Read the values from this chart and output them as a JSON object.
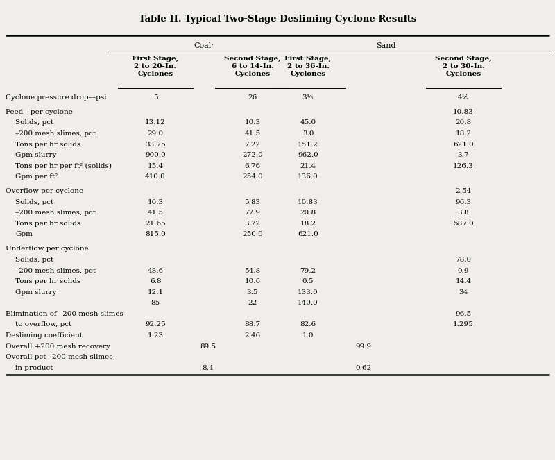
{
  "title": "Table II. Typical Two-Stage Desliming Cyclone Results",
  "bg_color": "#f0eeeb",
  "col_x": {
    "label": 0.01,
    "c1": 0.28,
    "c_coal_mid": 0.375,
    "c2": 0.455,
    "c3": 0.555,
    "c_sand_mid": 0.655,
    "c4": 0.835
  },
  "coal_label": "Coal·",
  "sand_label": "Sand",
  "col_headers": [
    [
      "First Stage,",
      "2 to 20-In.",
      "Cyclones"
    ],
    [
      "Second Stage,",
      "6 to 14-In.",
      "Cyclones"
    ],
    [
      "First Stage,",
      "2 to 36-In.",
      "Cyclones"
    ],
    [
      "Second Stage,",
      "2 to 30-In.",
      "Cyclones"
    ]
  ],
  "rows": [
    {
      "label": "Cyclone pressure drop––psi",
      "indent": false,
      "spacer_before": false,
      "v": [
        "5",
        "",
        "26",
        "3⅘",
        "",
        "4½"
      ]
    },
    {
      "label": "",
      "indent": false,
      "spacer_before": false,
      "spacer": true,
      "v": [
        "",
        "",
        "",
        "",
        "",
        ""
      ]
    },
    {
      "label": "Feed––per cyclone",
      "indent": false,
      "spacer_before": false,
      "v": [
        "",
        "",
        "",
        "",
        "",
        "10.83"
      ]
    },
    {
      "label": "Solids, pct",
      "indent": true,
      "spacer_before": false,
      "v": [
        "13.12",
        "",
        "10.3",
        "45.0",
        "",
        "20.8"
      ]
    },
    {
      "label": "–200 mesh slimes, pct",
      "indent": true,
      "spacer_before": false,
      "v": [
        "29.0",
        "",
        "41.5",
        "3.0",
        "",
        "18.2"
      ]
    },
    {
      "label": "Tons per hr solids",
      "indent": true,
      "spacer_before": false,
      "v": [
        "33.75",
        "",
        "7.22",
        "151.2",
        "",
        "621.0"
      ]
    },
    {
      "label": "Gpm slurry",
      "indent": true,
      "spacer_before": false,
      "v": [
        "900.0",
        "",
        "272.0",
        "962.0",
        "",
        "3.7"
      ]
    },
    {
      "label": "Tons per hr per ft² (solids)",
      "indent": true,
      "spacer_before": false,
      "v": [
        "15.4",
        "",
        "6.76",
        "21.4",
        "",
        "126.3"
      ]
    },
    {
      "label": "Gpm per ft²",
      "indent": true,
      "spacer_before": false,
      "v": [
        "410.0",
        "",
        "254.0",
        "136.0",
        "",
        ""
      ]
    },
    {
      "label": "",
      "indent": false,
      "spacer_before": false,
      "spacer": true,
      "v": [
        "",
        "",
        "",
        "",
        "",
        ""
      ]
    },
    {
      "label": "Overflow per cyclone",
      "indent": false,
      "spacer_before": false,
      "v": [
        "",
        "",
        "",
        "",
        "",
        "2.54"
      ]
    },
    {
      "label": "Solids, pct",
      "indent": true,
      "spacer_before": false,
      "v": [
        "10.3",
        "",
        "5.83",
        "10.83",
        "",
        "96.3"
      ]
    },
    {
      "label": "–200 mesh slimes, pct",
      "indent": true,
      "spacer_before": false,
      "v": [
        "41.5",
        "",
        "77.9",
        "20.8",
        "",
        "3.8"
      ]
    },
    {
      "label": "Tons per hr solids",
      "indent": true,
      "spacer_before": false,
      "v": [
        "21.65",
        "",
        "3.72",
        "18.2",
        "",
        "587.0"
      ]
    },
    {
      "label": "Gpm",
      "indent": true,
      "spacer_before": false,
      "v": [
        "815.0",
        "",
        "250.0",
        "621.0",
        "",
        ""
      ]
    },
    {
      "label": "",
      "indent": false,
      "spacer_before": false,
      "spacer": true,
      "v": [
        "",
        "",
        "",
        "",
        "",
        ""
      ]
    },
    {
      "label": "Underflow per cyclone",
      "indent": false,
      "spacer_before": false,
      "v": [
        "",
        "",
        "",
        "",
        "",
        ""
      ]
    },
    {
      "label": "Solids, pct",
      "indent": true,
      "spacer_before": false,
      "v": [
        "",
        "",
        "",
        "",
        "",
        "78.0"
      ]
    },
    {
      "label": "–200 mesh slimes, pct",
      "indent": true,
      "spacer_before": false,
      "v": [
        "48.6",
        "",
        "54.8",
        "79.2",
        "",
        "0.9"
      ]
    },
    {
      "label": "Tons per hr solids",
      "indent": true,
      "spacer_before": false,
      "v": [
        "6.8",
        "",
        "10.6",
        "0.5",
        "",
        "14.4"
      ]
    },
    {
      "label": "Gpm slurry",
      "indent": true,
      "spacer_before": false,
      "v": [
        "12.1",
        "",
        "3.5",
        "133.0",
        "",
        "34"
      ]
    },
    {
      "label": "",
      "indent": true,
      "spacer_before": false,
      "v": [
        "85",
        "",
        "22",
        "140.0",
        "",
        ""
      ]
    },
    {
      "label": "Elimination of –200 mesh slimes",
      "indent": false,
      "spacer_before": false,
      "v": [
        "",
        "",
        "",
        "",
        "",
        "96.5"
      ]
    },
    {
      "label": "to overflow, pct",
      "indent": true,
      "spacer_before": false,
      "v": [
        "92.25",
        "",
        "88.7",
        "82.6",
        "",
        "1.295"
      ]
    },
    {
      "label": "Desliming coefficient",
      "indent": false,
      "spacer_before": false,
      "v": [
        "1.23",
        "",
        "2.46",
        "1.0",
        "",
        ""
      ]
    },
    {
      "label": "Overall +200 mesh recovery",
      "indent": false,
      "spacer_before": false,
      "v": [
        "",
        "89.5",
        "",
        "",
        "99.9",
        ""
      ]
    },
    {
      "label": "Overall pct –200 mesh slimes",
      "indent": false,
      "spacer_before": false,
      "v": [
        "",
        "",
        "",
        "",
        "",
        ""
      ]
    },
    {
      "label": "in product",
      "indent": true,
      "spacer_before": false,
      "v": [
        "",
        "8.4",
        "",
        "",
        "0.62",
        ""
      ]
    }
  ]
}
